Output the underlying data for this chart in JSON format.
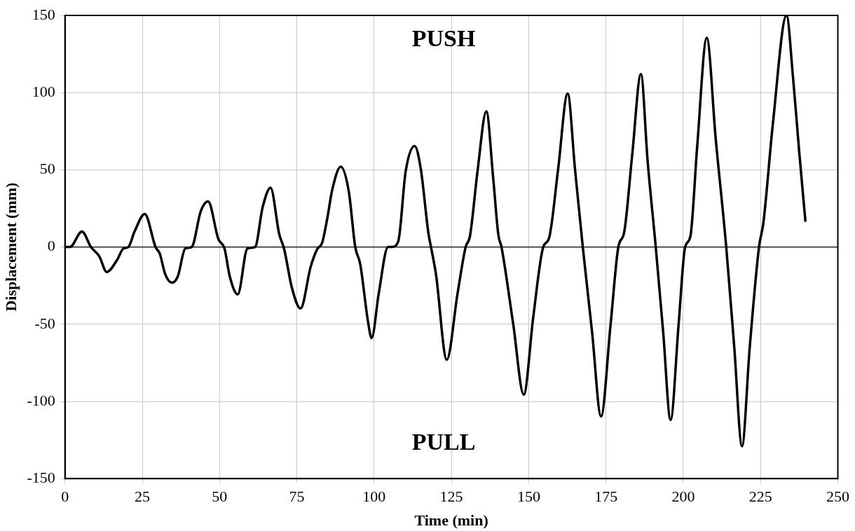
{
  "chart_data": {
    "type": "line",
    "xlabel": "Time (min)",
    "ylabel": "Displacement (mm)",
    "annotations": [
      "PUSH",
      "PULL"
    ],
    "xlim": [
      0,
      250
    ],
    "xticks": [
      0,
      25,
      50,
      75,
      100,
      125,
      150,
      175,
      200,
      225,
      250
    ],
    "ylim": [
      -150,
      150
    ],
    "yticks": [
      -150,
      -100,
      -50,
      0,
      50,
      100,
      150
    ],
    "grid": true,
    "marker": "none",
    "line_style": "solid",
    "ref_lines": [
      {
        "axis": "y",
        "value": 0,
        "color": "#000000"
      }
    ],
    "series": [
      {
        "color": "#000000",
        "x": [
          0,
          1.6,
          5.5,
          8.4,
          11.1,
          13.5,
          16.8,
          18.9,
          20.5,
          22.5,
          25.8,
          29.3,
          30.7,
          32.4,
          34.6,
          36.5,
          38.9,
          41,
          43.9,
          46.3,
          49.6,
          51.6,
          53.3,
          55.9,
          59,
          61.5,
          63.9,
          66.5,
          69.3,
          70.9,
          73.4,
          76.2,
          79.5,
          81.6,
          83.2,
          84.8,
          86.5,
          89.2,
          91.8,
          93.9,
          95.5,
          98,
          99.2,
          101.5,
          104.5,
          105.7,
          107.8,
          110.2,
          113.1,
          115.1,
          117.6,
          118.4,
          120,
          123.5,
          127,
          129.6,
          131,
          133.5,
          136.3,
          138.5,
          140.2,
          141.2,
          145,
          148.4,
          151.5,
          154.7,
          156.6,
          159.5,
          162.6,
          165,
          167.5,
          170.5,
          173.4,
          176.5,
          179,
          180.9,
          183.5,
          186.3,
          188.5,
          191.1,
          193.5,
          195.9,
          198.5,
          200.6,
          202.3,
          204.5,
          207.6,
          210.5,
          213.9,
          216.5,
          219,
          221.5,
          224.5,
          225.9,
          229,
          233.4,
          235.5,
          237.5,
          239.5
        ],
        "values": [
          0,
          0,
          10,
          0,
          -6,
          -16.2,
          -8.6,
          -1,
          0,
          10,
          21.4,
          0,
          -4.5,
          -17.5,
          -23.1,
          -19,
          -1,
          0,
          23,
          29.5,
          5.2,
          -1,
          -19,
          -30.7,
          -1,
          0,
          25.4,
          38.4,
          8.4,
          -1.3,
          -26.4,
          -39.8,
          -12.6,
          -1.3,
          2.8,
          18,
          37.5,
          52,
          36,
          0,
          -11,
          -48,
          -59,
          -30,
          0,
          0,
          3.6,
          48.9,
          65.4,
          50.5,
          8.4,
          0,
          -17.5,
          -73,
          -30,
          0,
          7,
          50,
          87.8,
          45,
          7.7,
          0,
          -50,
          -95.6,
          -45,
          0,
          5.8,
          50,
          99.4,
          50,
          0,
          -55,
          -109.7,
          -50,
          0,
          9.7,
          60,
          112,
          55,
          0,
          -55,
          -112,
          -50,
          0,
          6.8,
          65,
          135.5,
          70,
          0,
          -65,
          -129,
          -65,
          0,
          15.4,
          80,
          150,
          110,
          61.8,
          17
        ]
      }
    ]
  }
}
